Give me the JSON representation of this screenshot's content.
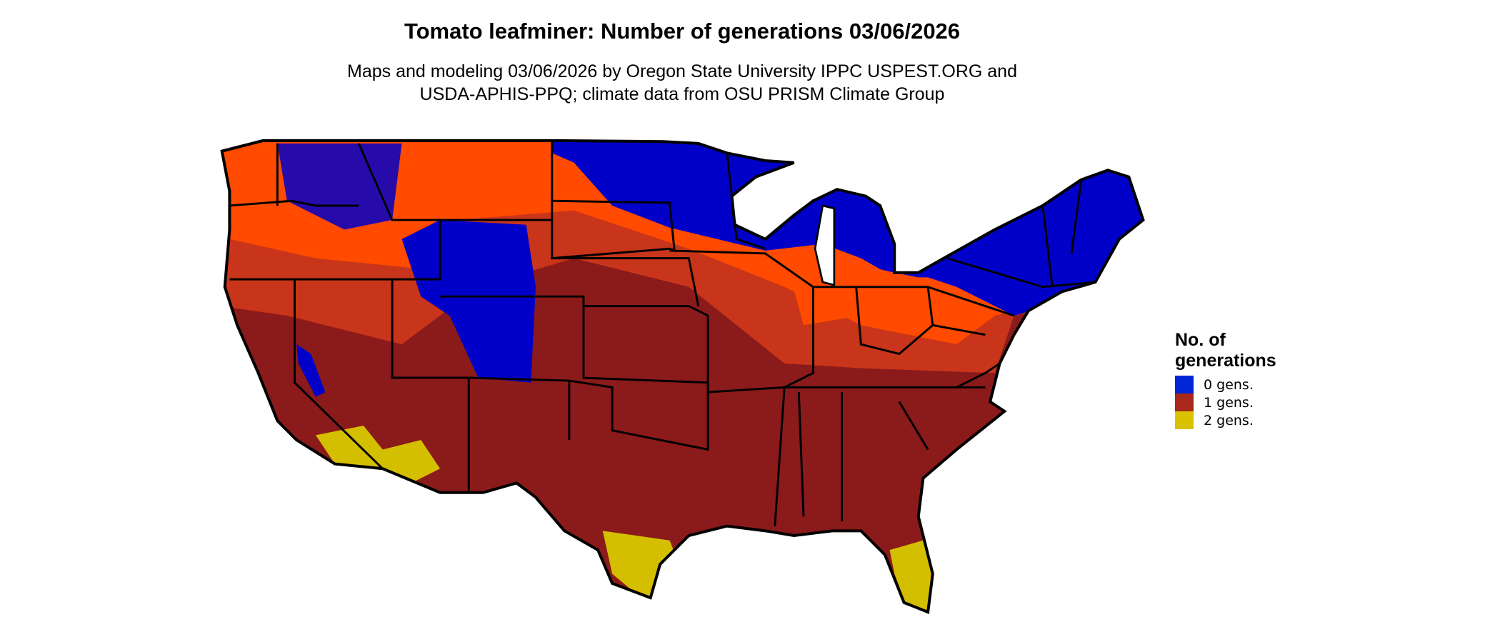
{
  "title": "Tomato leafminer: Number of generations 03/06/2026",
  "subtitle_line1": "Maps and modeling 03/06/2026 by Oregon State University IPPC USPEST.ORG and",
  "subtitle_line2": "USDA-APHIS-PPQ; climate data from OSU PRISM Climate Group",
  "legend": {
    "title_line1": "No. of",
    "title_line2": "generations",
    "items": [
      {
        "label": "0 gens.",
        "color": "#0026d6"
      },
      {
        "label": "1 gens.",
        "color": "#a8281a"
      },
      {
        "label": "2 gens.",
        "color": "#d9c200"
      }
    ]
  },
  "map_colors": {
    "zero": "#0000c8",
    "one_dark": "#8b1a1a",
    "one_mid": "#c0301a",
    "one_light": "#ff4a00",
    "two": "#d4be00",
    "borders": "#000000"
  }
}
